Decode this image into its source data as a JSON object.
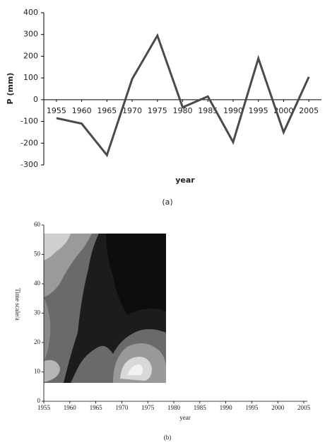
{
  "chart_data": [
    {
      "type": "line",
      "caption": "(a)",
      "xlabel": "year",
      "ylabel": "P (mm)",
      "x": [
        1955,
        1960,
        1965,
        1970,
        1975,
        1980,
        1985,
        1990,
        1995,
        2000,
        2005
      ],
      "series": [
        {
          "color": "#4a4a4a",
          "values": [
            -85,
            -110,
            -255,
            95,
            295,
            -35,
            15,
            -195,
            190,
            -150,
            105
          ]
        }
      ],
      "xlim": [
        1952.5,
        2007.5
      ],
      "xticks": [
        1955,
        1960,
        1965,
        1970,
        1975,
        1980,
        1985,
        1990,
        1995,
        2000,
        2005
      ],
      "ylim": [
        -300,
        400
      ],
      "yticks": [
        -300,
        -200,
        -100,
        0,
        100,
        200,
        300,
        400
      ]
    },
    {
      "type": "contour",
      "caption": "(b)",
      "xlabel": "year",
      "ylabel": "Time scale/a",
      "xlim": [
        1955,
        2005
      ],
      "xticks": [
        1955,
        1960,
        1965,
        1970,
        1975,
        1980,
        1985,
        1990,
        1995,
        2000,
        2005
      ],
      "ylim": [
        0,
        60
      ],
      "yticks": [
        0,
        10,
        20,
        30,
        40,
        50,
        60
      ]
    }
  ]
}
